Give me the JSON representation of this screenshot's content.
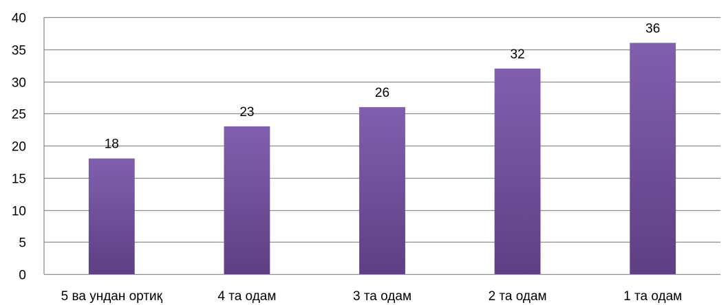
{
  "chart_data": {
    "type": "bar",
    "categories": [
      "5 ва ундан ортиқ",
      "4 та одам",
      "3 та одам",
      "2 та одам",
      "1 та одам"
    ],
    "values": [
      18,
      23,
      26,
      32,
      36
    ],
    "data_labels": [
      "18",
      "23",
      "26",
      "32",
      "36"
    ],
    "title": "",
    "xlabel": "",
    "ylabel": "",
    "ylim": [
      0,
      40
    ],
    "yticks": [
      0,
      5,
      10,
      15,
      20,
      25,
      30,
      35,
      40
    ],
    "ytick_labels": [
      "0",
      "5",
      "10",
      "15",
      "20",
      "25",
      "30",
      "35",
      "40"
    ],
    "grid": true,
    "legend": "none",
    "colors": {
      "bar_top": "#8060AE",
      "bar_bottom": "#5E3F84",
      "grid": "#8C8C8C",
      "axis": "#8C8C8C"
    }
  }
}
